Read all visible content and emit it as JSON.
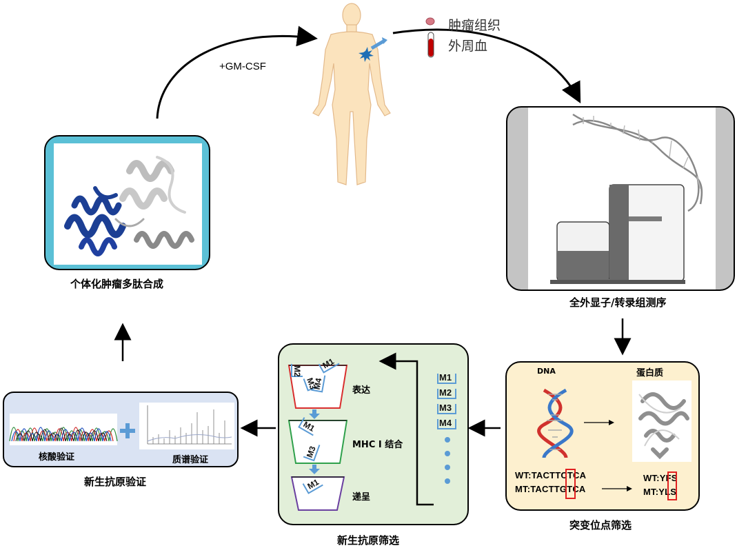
{
  "top": {
    "injection_label": "+GM-CSF",
    "legend": [
      {
        "label": "肿瘤组织",
        "icon": "tissue-icon"
      },
      {
        "label": "外周血",
        "icon": "blood-tube-icon"
      }
    ]
  },
  "synthesis": {
    "caption": "个体化肿瘤多肽合成"
  },
  "sequencing": {
    "caption": "全外显子/转录组测序"
  },
  "mutation": {
    "caption": "突变位点筛选",
    "dna_label": "DNA",
    "protein_label": "蛋白质",
    "wt_dna": "WT:TACTTCTCA",
    "mt_dna": "MT:TACTTGTCA",
    "wt_protein": "WT:YFS",
    "mt_protein": "MT:YLS",
    "colors": {
      "highlight": "#e02020",
      "panel_bg": "#fdf0cf"
    }
  },
  "screening": {
    "caption": "新生抗原筛选",
    "steps": [
      {
        "label": "表达",
        "tags": [
          "M1",
          "M2",
          "M3",
          "M4"
        ],
        "color": "#d92d2d"
      },
      {
        "label": "MHC I 结合",
        "tags": [
          "M1",
          "M3"
        ],
        "color": "#2ea04b"
      },
      {
        "label": "递呈",
        "tags": [
          "M1"
        ],
        "color": "#6a3fa0"
      }
    ],
    "mutation_list": [
      "M1",
      "M2",
      "M3",
      "M4"
    ],
    "colors": {
      "panel_bg": "#e2efd9",
      "bracket": "#5b9bd5"
    }
  },
  "validation": {
    "caption": "新生抗原验证",
    "left_label": "核酸验证",
    "right_label": "质谱验证",
    "colors": {
      "panel_bg": "#dae3f3",
      "plus": "#5b9bd5"
    }
  }
}
